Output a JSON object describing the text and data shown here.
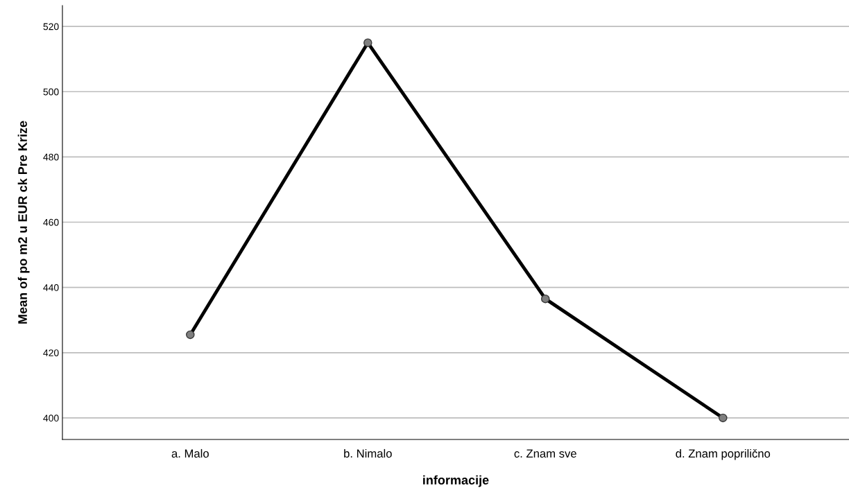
{
  "chart_data": {
    "type": "line",
    "xlabel": "informacije",
    "ylabel": "Mean of po m2 u EUR ck Pre Krize",
    "categories": [
      "a. Malo",
      "b. Nimalo",
      "c. Znam sve",
      "d. Znam poprilično"
    ],
    "series": [
      {
        "color": "#000000",
        "values": [
          425.5,
          515,
          436.5,
          400
        ]
      }
    ],
    "ylim": [
      393.4,
      526.4
    ],
    "yticks": [
      400,
      420,
      440,
      460,
      480,
      500,
      520
    ],
    "grid": "y",
    "marker": "circle",
    "line_style": "solid"
  }
}
